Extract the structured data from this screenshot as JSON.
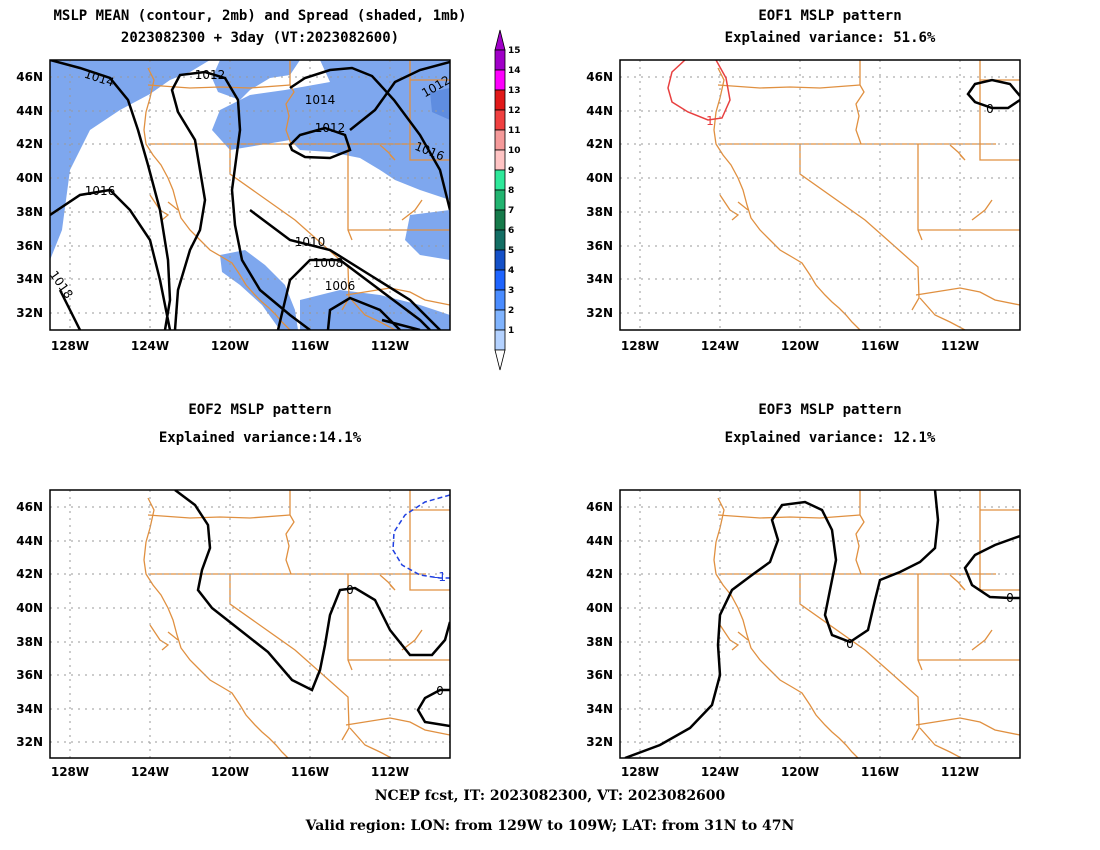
{
  "panels": {
    "p1": {
      "title_line1": "MSLP MEAN (contour, 2mb) and Spread (shaded, 1mb)",
      "title_line2": "2023082300 + 3day (VT:2023082600)"
    },
    "p2": {
      "title_line1": "EOF1 MSLP pattern",
      "title_line2": "Explained variance: 51.6%"
    },
    "p3": {
      "title_line1": "EOF2 MSLP pattern",
      "title_line2": "Explained variance:14.1%"
    },
    "p4": {
      "title_line1": "EOF3 MSLP pattern",
      "title_line2": "Explained variance: 12.1%"
    }
  },
  "axes": {
    "lon_labels": [
      "128W",
      "124W",
      "120W",
      "116W",
      "112W"
    ],
    "lat_labels": [
      "46N",
      "44N",
      "42N",
      "40N",
      "38N",
      "36N",
      "34N",
      "32N"
    ],
    "lon_range": [
      "129W",
      "109W"
    ],
    "lat_range": [
      "31N",
      "47N"
    ]
  },
  "colorbar": {
    "labels": [
      "15",
      "14",
      "13",
      "12",
      "11",
      "10",
      "9",
      "8",
      "7",
      "6",
      "5",
      "4",
      "3",
      "2",
      "1"
    ],
    "colors": [
      "#a000c8",
      "#ff00ff",
      "#e11919",
      "#f04040",
      "#f59a9a",
      "#ffc4c4",
      "#2ee89a",
      "#22b470",
      "#167a4a",
      "#136e64",
      "#1450c8",
      "#1e64ff",
      "#4a8cff",
      "#80b4ff",
      "#b4d2ff"
    ]
  },
  "contour_labels": {
    "p1": [
      "1014",
      "1012",
      "1014",
      "1012",
      "1016",
      "1016",
      "1018",
      "1010",
      "1008",
      "1006",
      "1012"
    ],
    "p2": [
      "1",
      "0"
    ],
    "p3": [
      "0",
      "-1",
      "0"
    ],
    "p4": [
      "0",
      "0"
    ]
  },
  "colors": {
    "shading": "#7ea7ee",
    "borders": "#e09040",
    "contour": "#000000",
    "eof_pos": "#e84040",
    "eof_neg": "#2040e0"
  },
  "footer": {
    "line1": "NCEP fcst, IT: 2023082300, VT: 2023082600",
    "line2": "Valid region: LON: from 129W to 109W; LAT: from 31N to 47N"
  }
}
